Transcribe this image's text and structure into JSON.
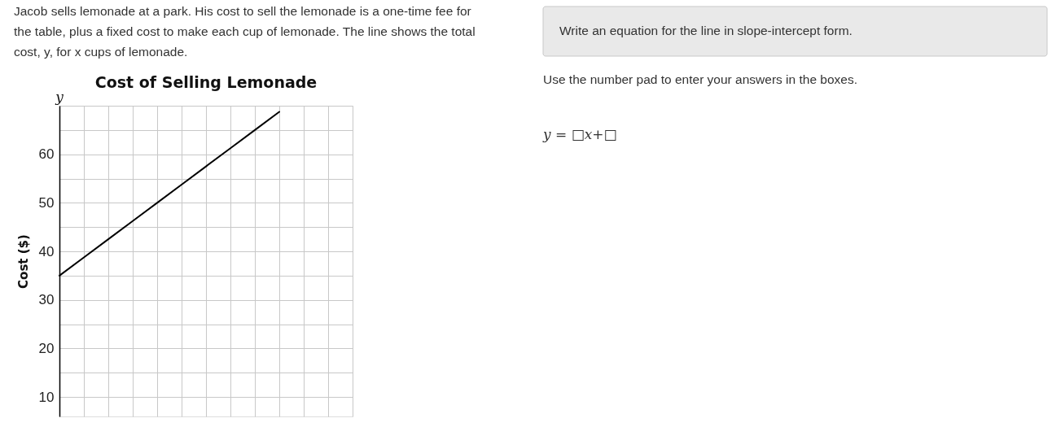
{
  "chart_data": {
    "type": "line",
    "title": "Cost of Selling Lemonade",
    "ylabel": "Cost ($)",
    "categories": [
      null,
      null,
      null,
      null,
      null,
      null,
      null,
      null,
      null,
      null,
      null,
      null,
      null
    ],
    "series": [
      {
        "color": "#000000",
        "values": [
          35,
          38.75,
          42.5,
          46.25,
          50,
          53.75,
          57.5,
          61.25,
          65,
          68.75,
          null,
          null,
          null
        ]
      }
    ],
    "ylim": [
      6,
      70
    ],
    "yticks": [
      10,
      {
        "value": 15,
        "label": null
      },
      20,
      {
        "value": 25,
        "label": null
      },
      30,
      {
        "value": 35,
        "label": null
      },
      40,
      {
        "value": 45,
        "label": null
      },
      50,
      {
        "value": 55,
        "label": null
      },
      60,
      {
        "value": 65,
        "label": null
      },
      {
        "value": 70,
        "label": null
      }
    ],
    "grid": true,
    "tick_labels": "y",
    "line_style": "solid",
    "annotations": [
      "Jacob sells lemonade at a park. His cost to sell the lemonade is a one-time fee for the table, plus a fixed cost to make each cup of lemonade. The line shows the total cost, y, for x cups of lemonade.",
      "Write an equation for the line in slope-intercept form.",
      "Use the number pad to enter your answers in the boxes.",
      "y = □x+□",
      "y"
    ]
  }
}
